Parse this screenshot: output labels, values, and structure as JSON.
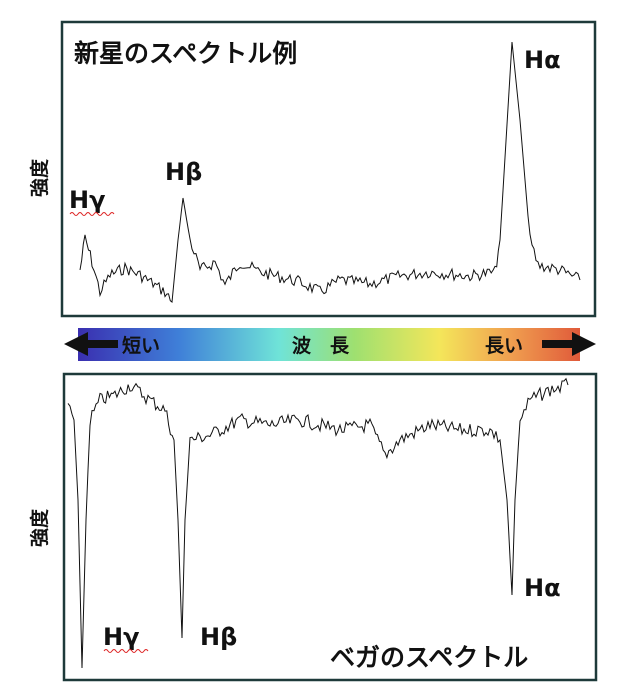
{
  "nova_panel": {
    "title": "新星のスペクトル例",
    "y_label": "強度",
    "lines": [
      "Hα",
      "Hβ",
      "Hγ"
    ]
  },
  "wavelength_bar": {
    "short": "短い",
    "label": "波　長",
    "long": "長い"
  },
  "vega_panel": {
    "title": "ベガのスペクトル",
    "y_label": "強度",
    "lines": [
      "Hα",
      "Hβ",
      "Hγ"
    ]
  }
}
